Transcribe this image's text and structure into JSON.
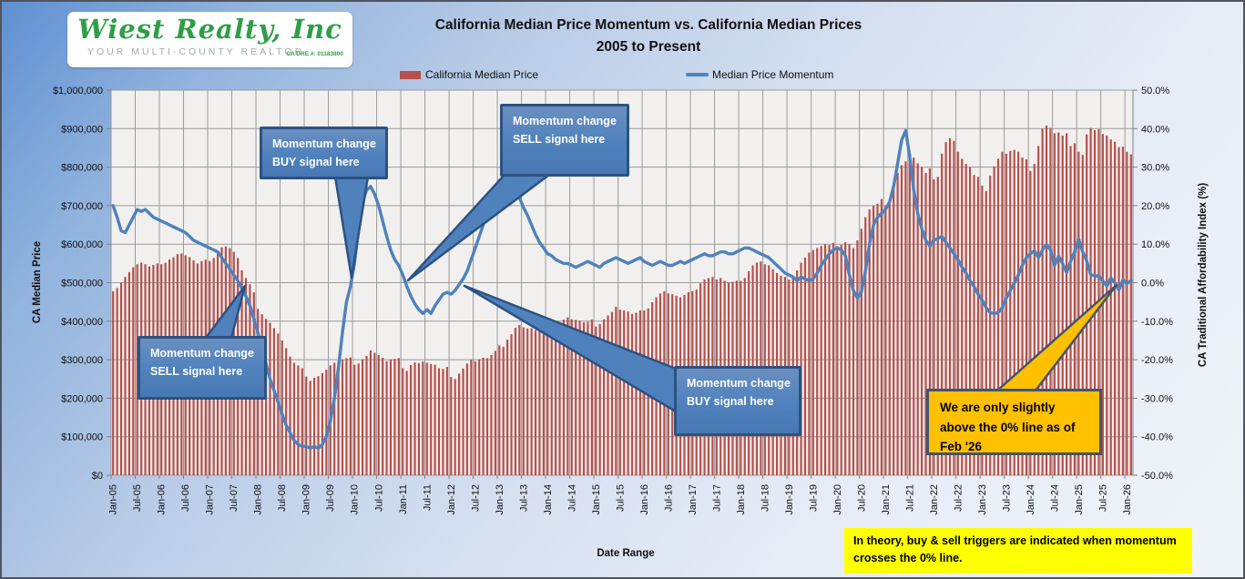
{
  "logo": {
    "name": "Wiest Realty, Inc",
    "tagline": "YOUR MULTI-COUNTY REALTOR",
    "license": "CA DRE #: 01183800"
  },
  "title": {
    "line1": "California Median Price Momentum vs. California Median Prices",
    "line2": "2005 to Present"
  },
  "legend": {
    "price_label": "California Median Price",
    "momentum_label": "Median Price Momentum"
  },
  "colors": {
    "bar": "#b5504d",
    "line": "#4f81bd",
    "callout_blue_border": "#2c5282",
    "callout_orange_fill": "#ffc000",
    "callout_orange_border": "#44546a",
    "plot_bg": "#f1f0ee",
    "gridline": "#9a9a9a"
  },
  "callouts": {
    "buy_top": "Momentum change\nBUY signal  here",
    "sell_top": "Momentum change\nSELL signal  here",
    "sell_left": "Momentum change\nSELL signal  here",
    "buy_mid": "Momentum change\nBUY signal here",
    "current": "We are only slightly\nabove the 0% line as of\nFeb '26"
  },
  "footnote": "In theory, buy & sell triggers are indicated when momentum\ncrosses the 0% line.",
  "chart_data": {
    "type": "combo",
    "title": "California Median Price Momentum vs. California Median Prices 2005 to Present",
    "xlabel": "Date Range",
    "x_start": "Jan-05",
    "x_end": "Feb-26",
    "months_per_point": 1,
    "grid": true,
    "legend_position": "top",
    "x_tick_labels": [
      "Jan-05",
      "Jul-05",
      "Jan-06",
      "Jul-06",
      "Jan-07",
      "Jul-07",
      "Jan-08",
      "Jul-08",
      "Jan-09",
      "Jul-09",
      "Jan-10",
      "Jul-10",
      "Jan-11",
      "Jul-11",
      "Jan-12",
      "Jul-12",
      "Jan-13",
      "Jul-13",
      "Jan-14",
      "Jul-14",
      "Jan-15",
      "Jul-15",
      "Jan-16",
      "Jul-16",
      "Jan-17",
      "Jul-17",
      "Jan-18",
      "Jul-18",
      "Jan-19",
      "Jul-19",
      "Jan-20",
      "Jul-20",
      "Jan-21",
      "Jul-21",
      "Jan-22",
      "Jul-22",
      "Jan-23",
      "Jul-23",
      "Jan-24",
      "Jul-24",
      "Jan-25",
      "Jul-25",
      "Jan-26"
    ],
    "left_axis": {
      "label": "CA Median Price",
      "min": 0,
      "max": 1000000,
      "tick_labels": [
        "$1,000,000",
        "$900,000",
        "$800,000",
        "$700,000",
        "$600,000",
        "$500,000",
        "$400,000",
        "$300,000",
        "$200,000",
        "$100,000",
        "$0"
      ]
    },
    "right_axis": {
      "label": "CA Traditional Affordability Index (%)",
      "min": -50,
      "max": 50,
      "tick_labels": [
        "50.0%",
        "40.0%",
        "30.0%",
        "20.0%",
        "10.0%",
        "0.0%",
        "-10.0%",
        "-20.0%",
        "-30.0%",
        "-40.0%",
        "-50.0%"
      ]
    },
    "series": [
      {
        "name": "California Median Price",
        "type": "bar",
        "axis": "left",
        "unit": "USD thousands",
        "values": [
          478,
          486,
          500,
          515,
          528,
          540,
          548,
          552,
          548,
          542,
          546,
          550,
          548,
          552,
          560,
          566,
          574,
          576,
          571,
          566,
          558,
          550,
          556,
          560,
          556,
          564,
          580,
          592,
          594,
          590,
          580,
          564,
          532,
          512,
          496,
          475,
          432,
          418,
          406,
          396,
          382,
          368,
          350,
          330,
          308,
          292,
          285,
          278,
          256,
          245,
          253,
          257,
          265,
          274,
          285,
          292,
          296,
          300,
          304,
          306,
          287,
          290,
          301,
          310,
          324,
          318,
          312,
          305,
          296,
          300,
          302,
          304,
          278,
          271,
          286,
          293,
          291,
          295,
          292,
          289,
          287,
          278,
          276,
          281,
          255,
          250,
          264,
          277,
          290,
          300,
          296,
          301,
          305,
          304,
          312,
          323,
          337,
          333,
          352,
          366,
          383,
          390,
          384,
          381,
          382,
          377,
          377,
          382,
          363,
          368,
          383,
          394,
          404,
          410,
          405,
          403,
          401,
          397,
          398,
          404,
          386,
          393,
          405,
          415,
          424,
          437,
          430,
          428,
          425,
          419,
          422,
          428,
          428,
          433,
          449,
          462,
          472,
          478,
          472,
          470,
          466,
          462,
          468,
          475,
          478,
          482,
          498,
          508,
          512,
          515,
          508,
          512,
          505,
          500,
          502,
          505,
          505,
          512,
          530,
          545,
          552,
          555,
          548,
          545,
          535,
          525,
          518,
          515,
          508,
          512,
          532,
          552,
          565,
          578,
          585,
          590,
          595,
          600,
          598,
          603,
          595,
          598,
          605,
          600,
          590,
          610,
          640,
          670,
          690,
          700,
          705,
          717,
          700,
          705,
          745,
          785,
          805,
          815,
          820,
          825,
          810,
          800,
          785,
          797,
          768,
          775,
          835,
          865,
          875,
          868,
          840,
          822,
          808,
          800,
          780,
          775,
          752,
          738,
          778,
          802,
          822,
          840,
          835,
          842,
          845,
          840,
          825,
          820,
          790,
          808,
          855,
          900,
          908,
          902,
          888,
          890,
          882,
          888,
          855,
          862,
          840,
          832,
          885,
          902,
          896,
          898,
          886,
          882,
          872,
          866,
          852,
          853,
          840,
          833
        ]
      },
      {
        "name": "Median Price Momentum",
        "type": "line",
        "axis": "right",
        "unit": "percent",
        "values": [
          20,
          17,
          13.5,
          13,
          15,
          17,
          19,
          18.5,
          19,
          18,
          17,
          16.5,
          16,
          15.5,
          15,
          14.5,
          14,
          13.5,
          13,
          12,
          11,
          10.5,
          10,
          9.5,
          9,
          8.5,
          8,
          6.5,
          5,
          3.5,
          2,
          0.5,
          -1.5,
          -3.5,
          -6,
          -9.5,
          -13,
          -17,
          -21,
          -25,
          -28,
          -31,
          -34,
          -37,
          -39,
          -41,
          -42,
          -42.5,
          -42.5,
          -43,
          -42.5,
          -43,
          -42,
          -40,
          -36,
          -30,
          -22,
          -13,
          -5,
          -1,
          5,
          14,
          21,
          24,
          25,
          23,
          20,
          16,
          12,
          8.5,
          6,
          4.5,
          2,
          -1,
          -3.5,
          -5.5,
          -7,
          -8,
          -7,
          -8,
          -6,
          -4.5,
          -3,
          -2.5,
          -3,
          -2,
          -0.5,
          1,
          3,
          6,
          9,
          12,
          15,
          18,
          21,
          24,
          26.5,
          27,
          26,
          25,
          23.5,
          22,
          19.5,
          17.5,
          15,
          12.5,
          10.5,
          9,
          7.5,
          7,
          6,
          5.5,
          5,
          5,
          4.5,
          4,
          4.5,
          5,
          5.5,
          5,
          4.5,
          4,
          5,
          5.5,
          6,
          6.5,
          6,
          5.5,
          5,
          5.5,
          6,
          6.5,
          5.5,
          5,
          4.5,
          5,
          5.5,
          5,
          4.5,
          4.5,
          5,
          5.5,
          5,
          5.5,
          6,
          6.5,
          7,
          7.5,
          7,
          7,
          7.5,
          8,
          8,
          7.5,
          7.5,
          8,
          8.5,
          9,
          9,
          8.5,
          8,
          7.5,
          7,
          6.5,
          5.5,
          4.5,
          3.5,
          2.5,
          2,
          1.5,
          0.5,
          1.5,
          1,
          0.5,
          1,
          2.5,
          4.5,
          6,
          7.5,
          8.5,
          9,
          8.5,
          7,
          2,
          -2,
          -4,
          -2.5,
          3,
          10,
          15,
          17,
          18,
          19,
          21,
          25,
          31,
          37,
          39.5,
          33,
          24,
          18,
          14,
          11,
          9.5,
          11,
          11.5,
          12,
          10.5,
          9,
          7.5,
          6,
          4,
          2.5,
          0.5,
          -1,
          -3,
          -4.5,
          -6.5,
          -7.8,
          -8,
          -7.8,
          -6.5,
          -4,
          -2,
          -0.2,
          2,
          4.5,
          6.5,
          7.5,
          8.3,
          6.5,
          8.5,
          9.9,
          8.5,
          4.5,
          6.9,
          5,
          2.6,
          5.5,
          8,
          11.3,
          8,
          5.7,
          2.1,
          1.8,
          1.7,
          0.5,
          -0.9,
          1.2,
          0,
          -1.9,
          0.7,
          -0.2,
          0.5
        ]
      }
    ]
  }
}
